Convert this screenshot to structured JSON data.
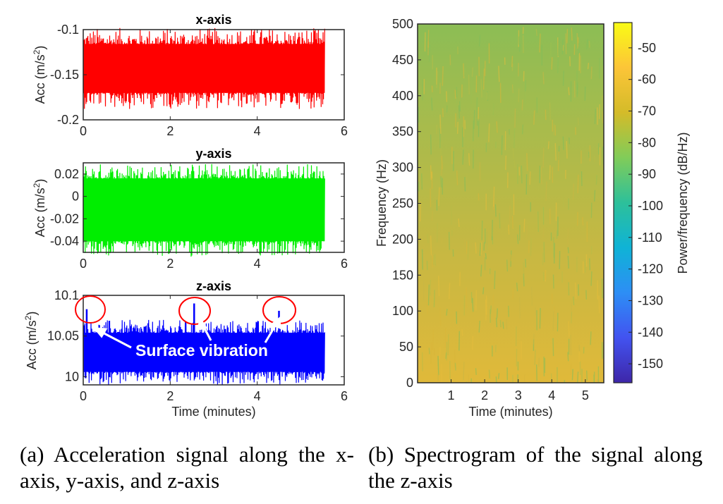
{
  "subplots": [
    {
      "title": "x-axis",
      "ylabel_base": "Acc (m/s",
      "ylabel_exp": "2",
      "ylabel_close": ")",
      "xlim": [
        0,
        6
      ],
      "ylim": [
        -0.2,
        -0.1
      ],
      "xticks": [
        "0",
        "2",
        "4",
        "6"
      ],
      "yticks": [
        {
          "v": -0.1,
          "label": "-0.1"
        },
        {
          "v": -0.15,
          "label": "-0.15"
        },
        {
          "v": -0.2,
          "label": "-0.2"
        }
      ],
      "signal": {
        "tmax": 5.55,
        "mean": -0.143,
        "spread": 0.027,
        "peak": 0.045,
        "color": "#ff0000"
      },
      "xlabel": ""
    },
    {
      "title": "y-axis",
      "ylabel_base": "Acc (m/s",
      "ylabel_exp": "2",
      "ylabel_close": ")",
      "xlim": [
        0,
        6
      ],
      "ylim": [
        -0.05,
        0.03
      ],
      "xticks": [
        "0",
        "2",
        "4",
        "6"
      ],
      "yticks": [
        {
          "v": 0.02,
          "label": "0.02"
        },
        {
          "v": 0,
          "label": "0"
        },
        {
          "v": -0.02,
          "label": "-0.02"
        },
        {
          "v": -0.04,
          "label": "-0.04"
        }
      ],
      "signal": {
        "tmax": 5.55,
        "mean": -0.012,
        "spread": 0.028,
        "peak": 0.042,
        "color": "#00ee00"
      },
      "xlabel": ""
    },
    {
      "title": "z-axis",
      "ylabel_base": "Acc (m/s",
      "ylabel_exp": "2",
      "ylabel_close": ")",
      "xlim": [
        0,
        6
      ],
      "ylim": [
        9.99,
        10.1
      ],
      "xticks": [
        "0",
        "2",
        "4",
        "6"
      ],
      "yticks": [
        {
          "v": 10.1,
          "label": "10.1"
        },
        {
          "v": 10.05,
          "label": "10.05"
        },
        {
          "v": 10,
          "label": "10"
        }
      ],
      "signal": {
        "tmax": 5.55,
        "mean": 10.03,
        "spread": 0.024,
        "peak": 0.04,
        "color": "#0000ff"
      },
      "spikes": [
        {
          "t": 0.08,
          "v": 10.083
        },
        {
          "t": 2.55,
          "v": 10.09
        },
        {
          "t": 4.5,
          "v": 10.081
        }
      ],
      "annotation": "Surface vibration",
      "xlabel": "Time (minutes)"
    }
  ],
  "spectrogram": {
    "xlabel": "Time (minutes)",
    "ylabel": "Frequency (Hz)",
    "xlim": [
      0,
      5.55
    ],
    "ylim": [
      0,
      500
    ],
    "xticks": [
      "1",
      "2",
      "3",
      "4",
      "5"
    ],
    "yticks": [
      "0",
      "50",
      "100",
      "150",
      "200",
      "250",
      "300",
      "350",
      "400",
      "450",
      "500"
    ],
    "power_db": {
      "at_0Hz": -68,
      "at_500Hz": -79
    },
    "colorbar": {
      "label": "Power/frequency (dB/Hz)",
      "range": [
        -156,
        -42
      ],
      "ticks": [
        "-50",
        "-60",
        "-70",
        "-80",
        "-90",
        "-100",
        "-110",
        "-120",
        "-130",
        "-140",
        "-150"
      ],
      "colors": [
        "#3e26a8",
        "#4253f0",
        "#2d8ef5",
        "#0fb3d6",
        "#2dc09a",
        "#81cc59",
        "#d4bb29",
        "#fcc538",
        "#f9fb15"
      ]
    }
  },
  "captions": {
    "a": "(a) Acceleration signal along the x-axis, y-axis, and z-axis",
    "b": "(b) Spectrogram of the signal along the z-axis"
  }
}
